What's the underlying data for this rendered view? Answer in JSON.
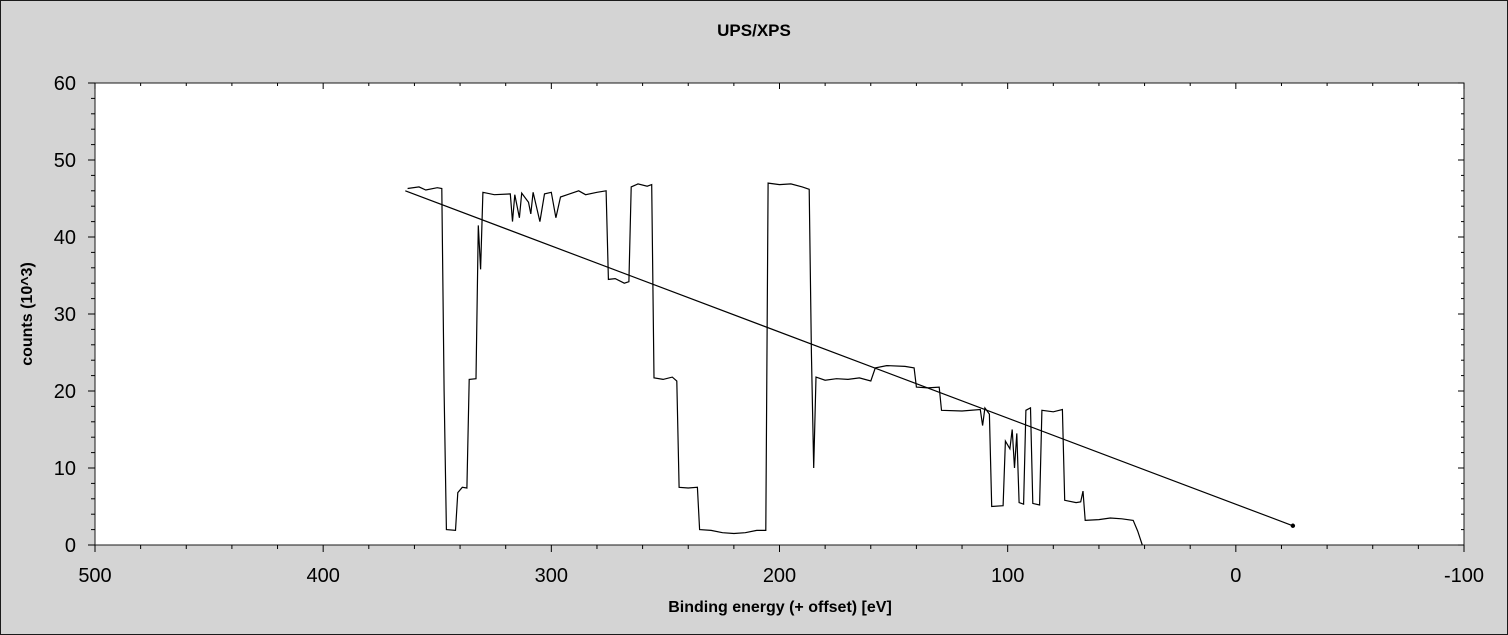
{
  "chart_data": {
    "type": "line",
    "title": "UPS/XPS",
    "xlabel": "Binding energy (+ offset) [eV]",
    "ylabel": "counts (10^3)",
    "xlim": [
      500,
      -100
    ],
    "ylim": [
      0,
      60
    ],
    "x_reversed": true,
    "grid": false,
    "xticks": [
      500,
      400,
      300,
      200,
      100,
      0,
      -100
    ],
    "xtick_labels": [
      "500",
      "400",
      "300",
      "200",
      "100",
      "0",
      "-100"
    ],
    "yticks": [
      0,
      10,
      20,
      30,
      40,
      50,
      60
    ],
    "ytick_labels": [
      "0",
      "10",
      "20",
      "30",
      "40",
      "50",
      "60"
    ],
    "series": [
      {
        "color": "#000000",
        "points": [
          [
            363,
            46.3
          ],
          [
            358,
            46.5
          ],
          [
            355,
            46.1
          ],
          [
            350,
            46.4
          ],
          [
            348,
            46.3
          ],
          [
            347,
            20.0
          ],
          [
            346,
            2.0
          ],
          [
            342,
            1.9
          ],
          [
            341,
            6.8
          ],
          [
            339,
            7.5
          ],
          [
            337,
            7.4
          ],
          [
            336,
            21.5
          ],
          [
            333,
            21.6
          ],
          [
            332,
            41.5
          ],
          [
            331,
            35.8
          ],
          [
            330,
            45.8
          ],
          [
            325,
            45.5
          ],
          [
            318,
            45.6
          ],
          [
            317,
            42.0
          ],
          [
            316,
            45.5
          ],
          [
            314,
            42.5
          ],
          [
            313,
            45.7
          ],
          [
            310,
            44.5
          ],
          [
            309,
            43.0
          ],
          [
            308,
            45.8
          ],
          [
            305,
            42.0
          ],
          [
            303,
            45.6
          ],
          [
            300,
            45.8
          ],
          [
            298,
            42.5
          ],
          [
            296,
            45.2
          ],
          [
            293,
            45.5
          ],
          [
            288,
            46.0
          ],
          [
            285,
            45.5
          ],
          [
            280,
            45.8
          ],
          [
            276,
            46.0
          ],
          [
            275,
            34.5
          ],
          [
            272,
            34.6
          ],
          [
            268,
            34.0
          ],
          [
            266,
            34.2
          ],
          [
            265,
            46.5
          ],
          [
            262,
            46.9
          ],
          [
            258,
            46.6
          ],
          [
            256,
            46.8
          ],
          [
            255,
            21.7
          ],
          [
            251,
            21.5
          ],
          [
            247,
            21.8
          ],
          [
            245,
            21.3
          ],
          [
            244,
            7.5
          ],
          [
            240,
            7.4
          ],
          [
            236,
            7.5
          ],
          [
            235,
            2.0
          ],
          [
            230,
            1.9
          ],
          [
            225,
            1.6
          ],
          [
            220,
            1.5
          ],
          [
            215,
            1.6
          ],
          [
            210,
            1.9
          ],
          [
            206,
            1.9
          ],
          [
            205,
            47.0
          ],
          [
            200,
            46.8
          ],
          [
            195,
            46.9
          ],
          [
            190,
            46.5
          ],
          [
            187,
            46.2
          ],
          [
            186,
            25.0
          ],
          [
            185,
            10.0
          ],
          [
            184,
            21.8
          ],
          [
            180,
            21.4
          ],
          [
            175,
            21.6
          ],
          [
            170,
            21.5
          ],
          [
            165,
            21.7
          ],
          [
            160,
            21.3
          ],
          [
            158,
            23.0
          ],
          [
            153,
            23.3
          ],
          [
            145,
            23.2
          ],
          [
            141,
            23.0
          ],
          [
            140,
            20.5
          ],
          [
            135,
            20.4
          ],
          [
            130,
            20.5
          ],
          [
            129,
            17.5
          ],
          [
            120,
            17.4
          ],
          [
            112,
            17.6
          ],
          [
            111,
            15.5
          ],
          [
            110,
            17.8
          ],
          [
            108,
            17.0
          ],
          [
            107,
            5.0
          ],
          [
            102,
            5.1
          ],
          [
            101,
            13.5
          ],
          [
            99,
            12.5
          ],
          [
            98,
            15.0
          ],
          [
            97,
            10.0
          ],
          [
            96,
            14.5
          ],
          [
            95,
            5.5
          ],
          [
            93,
            5.3
          ],
          [
            92,
            17.5
          ],
          [
            90,
            17.8
          ],
          [
            89,
            5.4
          ],
          [
            86,
            5.2
          ],
          [
            85,
            17.5
          ],
          [
            80,
            17.3
          ],
          [
            76,
            17.6
          ],
          [
            75,
            5.8
          ],
          [
            70,
            5.5
          ],
          [
            68,
            5.6
          ],
          [
            67,
            7.0
          ],
          [
            66,
            3.2
          ],
          [
            60,
            3.3
          ],
          [
            55,
            3.5
          ],
          [
            50,
            3.4
          ],
          [
            45,
            3.2
          ],
          [
            43,
            1.8
          ],
          [
            41,
            0.0
          ]
        ]
      },
      {
        "color": "#000000",
        "points": [
          [
            364,
            46.0
          ],
          [
            -25,
            2.5
          ]
        ]
      }
    ]
  }
}
